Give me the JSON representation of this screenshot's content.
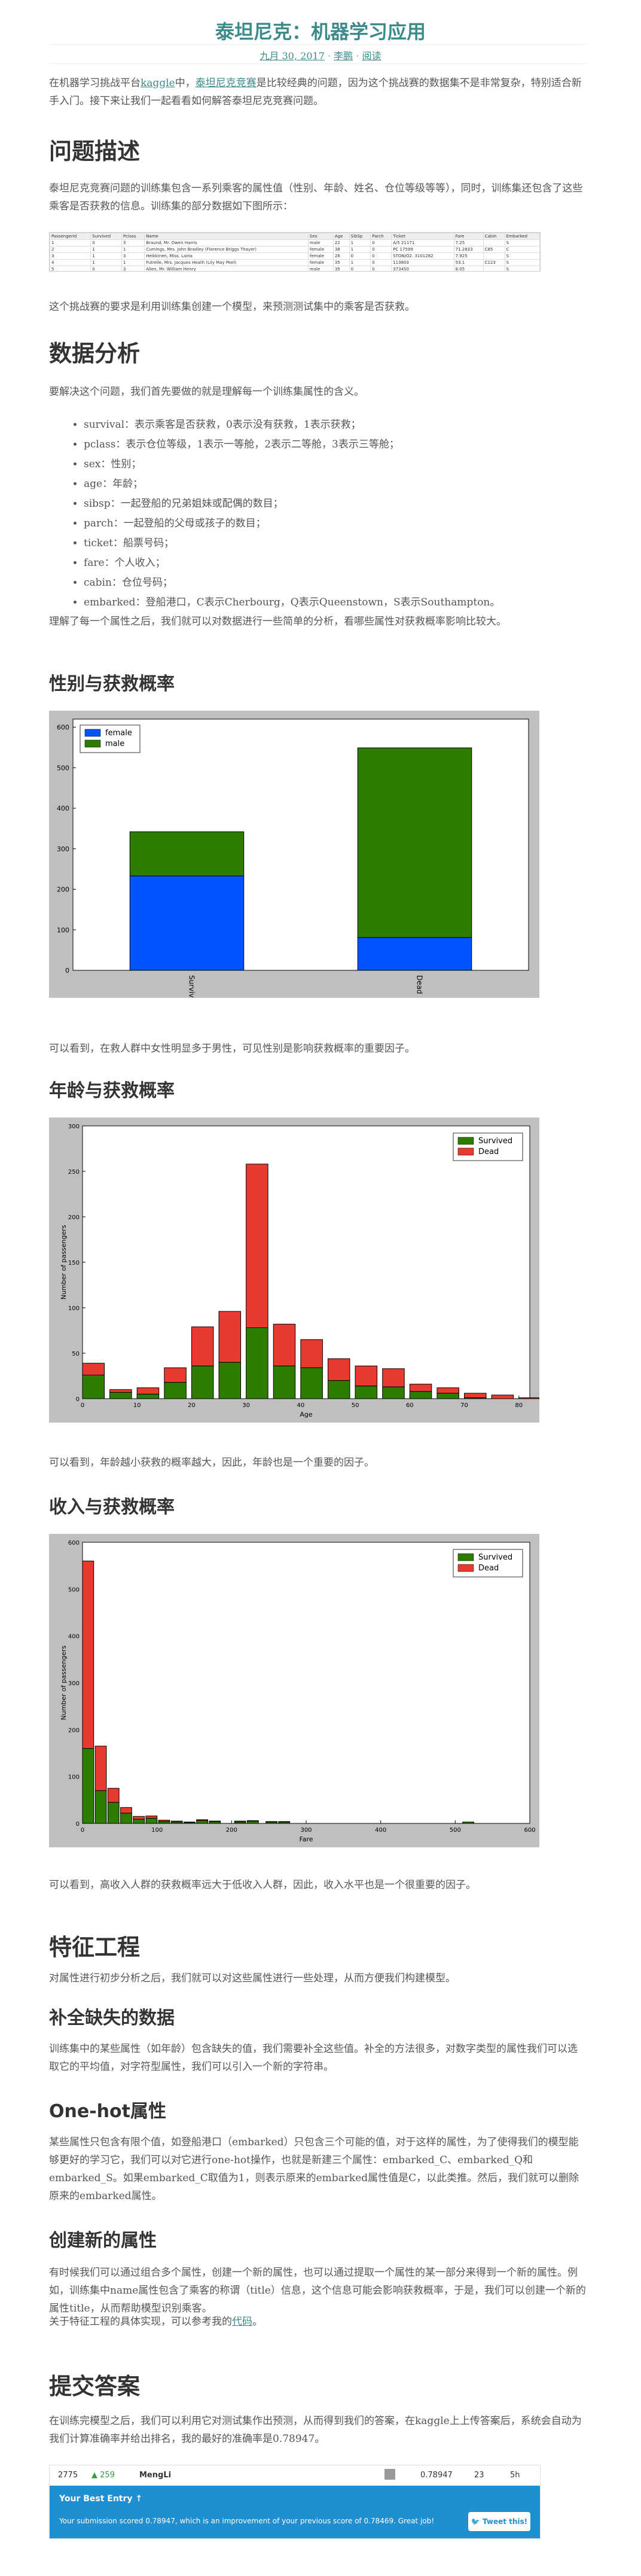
{
  "header": {
    "title": "泰坦尼克：机器学习应用",
    "date": "九月 30, 2017",
    "sep1": "·",
    "author": "李鹏",
    "sep2": "·",
    "comments": "阅读"
  },
  "intro": {
    "p1_a": "在机器学习挑战平台",
    "p1_link1": "kaggle",
    "p1_b": "中，",
    "p1_link2": "泰坦尼克竞赛",
    "p1_c": "是比较经典的问题，因为这个挑战赛的数据集不是非常复杂，特别适合新手入门。接下来让我们一起看看如何解答泰坦尼克竞赛问题。"
  },
  "problem": {
    "heading": "问题描述",
    "p1": "泰坦尼克竞赛问题的训练集包含一系列乘客的属性值（性别、年龄、姓名、仓位等级等等），同时，训练集还包含了这些乘客是否获救的信息。训练集的部分数据如下图所示：",
    "p2": "这个挑战赛的要求是利用训练集创建一个模型，来预测测试集中的乘客是否获救。",
    "sheet": {
      "headers": [
        "PassengerId",
        "Survived",
        "Pclass",
        "Name",
        "Sex",
        "Age",
        "SibSp",
        "Parch",
        "Ticket",
        "Fare",
        "Cabin",
        "Embarked"
      ],
      "rows": [
        [
          "1",
          "0",
          "3",
          "Braund, Mr. Owen Harris",
          "male",
          "22",
          "1",
          "0",
          "A/5 21171",
          "7.25",
          "",
          "S"
        ],
        [
          "2",
          "1",
          "1",
          "Cumings, Mrs. John Bradley (Florence Briggs Thayer)",
          "female",
          "38",
          "1",
          "0",
          "PC 17599",
          "71.2833",
          "C85",
          "C"
        ],
        [
          "3",
          "1",
          "3",
          "Heikkinen, Miss. Laina",
          "female",
          "26",
          "0",
          "0",
          "STON/O2. 3101282",
          "7.925",
          "",
          "S"
        ],
        [
          "4",
          "1",
          "1",
          "Futrelle, Mrs. Jacques Heath (Lily May Peel)",
          "female",
          "35",
          "1",
          "0",
          "113803",
          "53.1",
          "C123",
          "S"
        ],
        [
          "5",
          "0",
          "3",
          "Allen, Mr. William Henry",
          "male",
          "35",
          "0",
          "0",
          "373450",
          "8.05",
          "",
          "S"
        ]
      ]
    }
  },
  "analysis": {
    "heading": "数据分析",
    "p1": "要解决这个问题，我们首先要做的就是理解每一个训练集属性的含义。",
    "items": [
      "survival：表示乘客是否获救，0表示没有获救，1表示获救；",
      "pclass：表示仓位等级，1表示一等舱，2表示二等舱，3表示三等舱；",
      "sex：性别；",
      "age：年龄；",
      "sibsp：一起登船的兄弟姐妹或配偶的数目；",
      "parch：一起登船的父母或孩子的数目；",
      "ticket：船票号码；",
      "fare：个人收入；",
      "cabin：仓位号码；",
      "embarked：登船港口，C表示Cherbourg，Q表示Queenstown，S表示Southampton。"
    ],
    "p2": "理解了每一个属性之后，我们就可以对数据进行一些简单的分析，看哪些属性对获救概率影响比较大。"
  },
  "sex_section": {
    "heading": "性别与获救概率",
    "caption": "可以看到，在救人群中女性明显多于男性，可见性别是影响获救概率的重要因子。"
  },
  "age_section": {
    "heading": "年龄与获救概率",
    "caption": "可以看到，年龄越小获救的概率越大，因此，年龄也是一个重要的因子。"
  },
  "fare_section": {
    "heading": "收入与获救概率",
    "caption": "可以看到，高收入人群的获救概率远大于低收入人群，因此，收入水平也是一个很重要的因子。"
  },
  "features": {
    "heading": "特征工程",
    "p1": "对属性进行初步分析之后，我们就可以对这些属性进行一些处理，从而方便我们构建模型。",
    "missing_heading": "补全缺失的数据",
    "missing_p": "训练集中的某些属性（如年龄）包含缺失的值，我们需要补全这些值。补全的方法很多，对数字类型的属性我们可以选取它的平均值，对字符型属性，我们可以引入一个新的字符串。",
    "onehot_heading": "One-hot属性",
    "onehot_p": "某些属性只包含有限个值，如登船港口（embarked）只包含三个可能的值，对于这样的属性，为了使得我们的模型能够更好的学习它，我们可以对它进行one-hot操作，也就是新建三个属性：embarked_C、embarked_Q和embarked_S。如果embarked_C取值为1，则表示原来的embarked属性值是C，以此类推。然后，我们就可以删除原来的embarked属性。",
    "create_heading": "创建新的属性",
    "create_p": "有时候我们可以通过组合多个属性，创建一个新的属性，也可以通过提取一个属性的某一部分来得到一个新的属性。例如，训练集中name属性包含了乘客的称谓（title）信息，这个信息可能会影响获救概率，于是，我们可以创建一个新的属性title，从而帮助模型识别乘客。",
    "more_a": "关于特征工程的具体实现，可以参考我的",
    "more_link": "代码",
    "more_b": "。"
  },
  "submit": {
    "heading": "提交答案",
    "p1": "在训练完模型之后，我们可以利用它对测试集作出预测，从而得到我们的答案，在kaggle上上传答案后，系统会自动为我们计算准确率并给出排名，我的最好的准确率是0.78947。",
    "kaggle": {
      "rank": "2775",
      "change": "▲ 259",
      "team": "MengLi",
      "score": "0.78947",
      "entries": "23",
      "last": "5h",
      "best_label": "Your Best Entry ↑",
      "message": "Your submission scored 0.78947, which is an improvement of your previous score of 0.78469. Great job!",
      "tweet": "Tweet this!"
    }
  },
  "colors": {
    "accent": "#3d8a8a",
    "female": "#0055ff",
    "male": "#2e7d00",
    "survived": "#2e7d00",
    "dead": "#e83a2f",
    "chart_bg": "#bfbfbf"
  },
  "chart_data": [
    {
      "type": "bar",
      "stacked": true,
      "categories": [
        "Survived",
        "Dead"
      ],
      "series": [
        {
          "name": "female",
          "values": [
            233,
            81
          ]
        },
        {
          "name": "male",
          "values": [
            109,
            468
          ]
        }
      ],
      "yticks": [
        0,
        100,
        200,
        300,
        400,
        500,
        600
      ],
      "ylim": [
        0,
        620
      ],
      "legend": "top-left"
    },
    {
      "type": "bar",
      "stacked": true,
      "xlabel": "Age",
      "ylabel": "Number of passengers",
      "bins": [
        0,
        5,
        10,
        15,
        20,
        25,
        30,
        35,
        40,
        45,
        50,
        55,
        60,
        65,
        70,
        75,
        80
      ],
      "bin_width": 4,
      "series": [
        {
          "name": "Survived",
          "values": [
            26,
            7,
            5,
            18,
            36,
            40,
            78,
            36,
            34,
            20,
            14,
            13,
            8,
            6,
            1,
            0,
            0
          ]
        },
        {
          "name": "Dead",
          "values": [
            13,
            3,
            7,
            16,
            43,
            56,
            180,
            46,
            31,
            24,
            22,
            20,
            8,
            6,
            5,
            4,
            1
          ]
        }
      ],
      "xticks": [
        0,
        10,
        20,
        30,
        40,
        50,
        60,
        70,
        80
      ],
      "yticks": [
        0,
        50,
        100,
        150,
        200,
        250,
        300
      ],
      "xlim": [
        0,
        82
      ],
      "ylim": [
        0,
        300
      ],
      "legend": "top-right"
    },
    {
      "type": "bar",
      "stacked": true,
      "xlabel": "Fare",
      "ylabel": "Number of passengers",
      "bins": [
        0,
        17,
        34,
        51,
        68,
        85,
        102,
        119,
        136,
        153,
        170,
        204,
        221,
        246,
        263,
        510
      ],
      "bin_width": 15,
      "series": [
        {
          "name": "Survived",
          "values": [
            160,
            70,
            45,
            22,
            9,
            11,
            4,
            3,
            2,
            6,
            4,
            3,
            5,
            3,
            3,
            3
          ]
        },
        {
          "name": "Dead",
          "values": [
            400,
            95,
            30,
            12,
            6,
            5,
            3,
            2,
            1,
            2,
            1,
            2,
            1,
            1,
            1,
            0
          ]
        }
      ],
      "xticks": [
        0,
        100,
        200,
        300,
        400,
        500,
        600
      ],
      "yticks": [
        0,
        100,
        200,
        300,
        400,
        500,
        600
      ],
      "xlim": [
        0,
        600
      ],
      "ylim": [
        0,
        600
      ],
      "legend": "top-right"
    }
  ]
}
